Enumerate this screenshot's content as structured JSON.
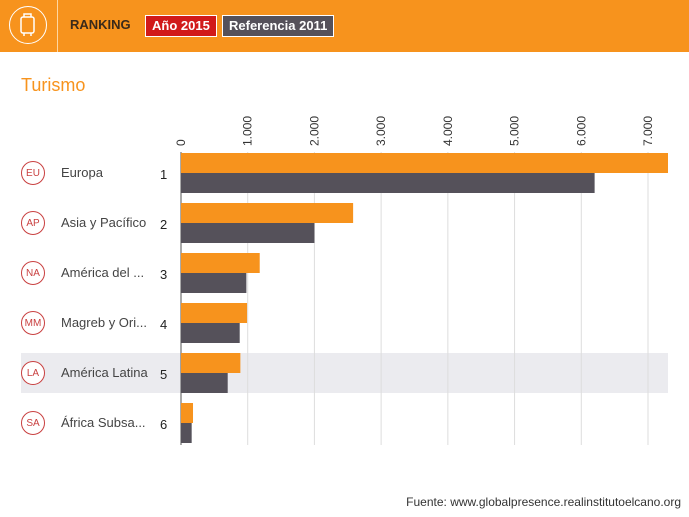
{
  "header": {
    "ranking": "RANKING",
    "badge_year": "Año 2015",
    "badge_ref": "Referencia 2011"
  },
  "colors": {
    "accent": "#f7931d",
    "dark_series": "#55515a",
    "badge_red": "#d11a1a"
  },
  "section": {
    "title": "Turismo"
  },
  "rows": [
    {
      "abbr": "EU",
      "name": "Europa",
      "rank": "1"
    },
    {
      "abbr": "AP",
      "name": "Asia y Pacífico",
      "rank": "2"
    },
    {
      "abbr": "NA",
      "name": "América del ...",
      "rank": "3"
    },
    {
      "abbr": "MM",
      "name": "Magreb y Ori...",
      "rank": "4"
    },
    {
      "abbr": "LA",
      "name": "América Latina",
      "rank": "5"
    },
    {
      "abbr": "SA",
      "name": "África Subsa...",
      "rank": "6"
    }
  ],
  "highlighted_row": 4,
  "chart_data": {
    "type": "bar",
    "orientation": "horizontal",
    "categories": [
      "Europa",
      "Asia y Pacífico",
      "América del ...",
      "Magreb y Ori...",
      "América Latina",
      "África Subsa..."
    ],
    "series": [
      {
        "name": "Año 2015",
        "color": "#f7931d",
        "values": [
          7300,
          2580,
          1180,
          990,
          890,
          180
        ]
      },
      {
        "name": "Referencia 2011",
        "color": "#55515a",
        "values": [
          6200,
          2000,
          980,
          880,
          700,
          160
        ]
      }
    ],
    "xlim": [
      0,
      7300
    ],
    "ticks": [
      0,
      1000,
      2000,
      3000,
      4000,
      5000,
      6000,
      7000
    ],
    "tick_labels": [
      "0",
      "1.000",
      "2.000",
      "3.000",
      "4.000",
      "5.000",
      "6.000",
      "7.000"
    ],
    "tick_position": "top",
    "grid": true
  },
  "footer": {
    "source": "Fuente: www.globalpresence.realinstitutoelcano.org"
  }
}
